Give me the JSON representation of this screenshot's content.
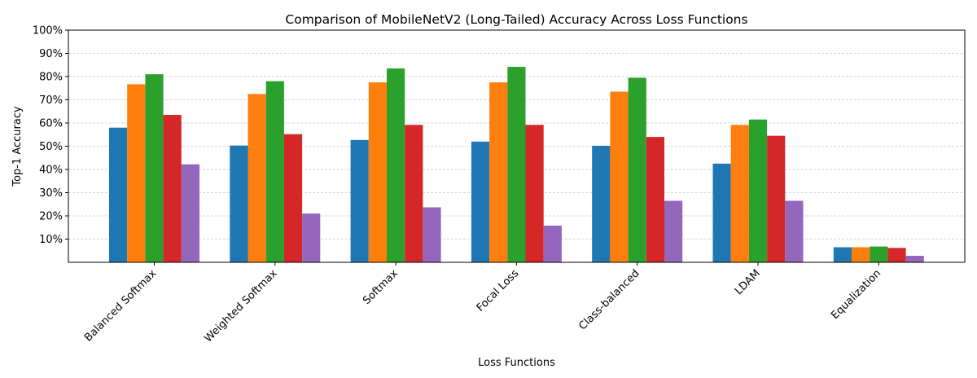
{
  "chart_data": {
    "type": "bar",
    "title": "Comparison of MobileNetV2 (Long-Tailed) Accuracy Across Loss Functions",
    "xlabel": "Loss Functions",
    "ylabel": "Top-1 Accuracy",
    "ylim": [
      0,
      1
    ],
    "yticks": [
      {
        "value": 0.1,
        "label": "10%"
      },
      {
        "value": 0.2,
        "label": "20%"
      },
      {
        "value": 0.3,
        "label": "30%"
      },
      {
        "value": 0.4,
        "label": "40%"
      },
      {
        "value": 0.5,
        "label": "50%"
      },
      {
        "value": 0.6,
        "label": "60%"
      },
      {
        "value": 0.7,
        "label": "70%"
      },
      {
        "value": 0.8,
        "label": "80%"
      },
      {
        "value": 0.9,
        "label": "90%"
      },
      {
        "value": 1.0,
        "label": "100%"
      }
    ],
    "grid": "y",
    "legend": "none",
    "categories": [
      "Balanced Softmax",
      "Weighted Softmax",
      "Softmax",
      "Focal Loss",
      "Class-balanced",
      "LDAM",
      "Equalization"
    ],
    "series": [
      {
        "color": "#1f77b4",
        "values": [
          0.58,
          0.503,
          0.527,
          0.52,
          0.502,
          0.425,
          0.065
        ]
      },
      {
        "color": "#ff7f0e",
        "values": [
          0.767,
          0.725,
          0.775,
          0.775,
          0.735,
          0.592,
          0.065
        ]
      },
      {
        "color": "#2ca02c",
        "values": [
          0.81,
          0.78,
          0.835,
          0.842,
          0.795,
          0.615,
          0.068
        ]
      },
      {
        "color": "#d62728",
        "values": [
          0.635,
          0.552,
          0.592,
          0.592,
          0.54,
          0.545,
          0.062
        ]
      },
      {
        "color": "#9467bd",
        "values": [
          0.422,
          0.21,
          0.237,
          0.158,
          0.265,
          0.265,
          0.028
        ]
      }
    ]
  }
}
